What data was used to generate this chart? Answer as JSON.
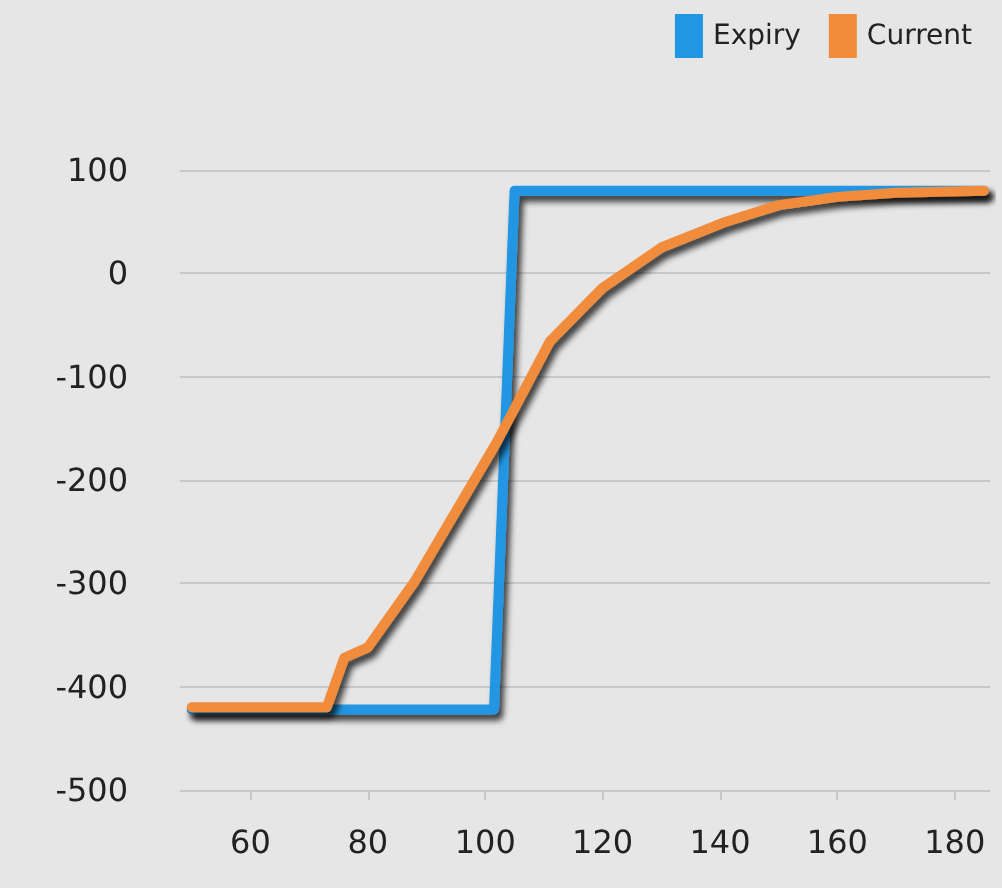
{
  "chart_data": {
    "type": "line",
    "legend": "top right",
    "grid": "y",
    "marker": "none",
    "line_style": "solid",
    "xlim": [
      48,
      186
    ],
    "xticks": [
      60,
      80,
      100,
      120,
      140,
      160,
      180
    ],
    "ylim": [
      -500,
      100
    ],
    "yticks": [
      -500,
      -400,
      -300,
      -200,
      -100,
      0,
      100
    ],
    "series": [
      {
        "name": "Expiry",
        "color": "#2196e3",
        "x": [
          50,
          101.5,
          105,
          185
        ],
        "values": [
          -422,
          -422,
          80,
          80
        ]
      },
      {
        "name": "Current",
        "color": "#f08c3a",
        "x": [
          50,
          73,
          76,
          80,
          88,
          94,
          102,
          111,
          120,
          130,
          141,
          150,
          160,
          170,
          185
        ],
        "values": [
          -420,
          -420,
          -372,
          -362,
          -298,
          -240,
          -163,
          -66,
          -14,
          25,
          50,
          66,
          74,
          78,
          80
        ]
      }
    ]
  }
}
